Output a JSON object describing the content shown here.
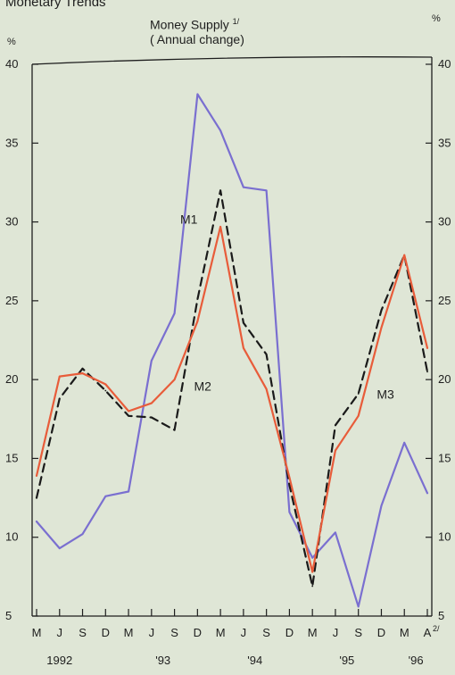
{
  "page": {
    "title": "Monetary Trends"
  },
  "chart_data": {
    "type": "line",
    "title": "Money Supply",
    "title_note": "1/",
    "subtitle": "( Annual change)",
    "y_unit_left": "%",
    "y_unit_right": "%",
    "ylim": [
      5,
      40
    ],
    "yticks": [
      5,
      10,
      15,
      20,
      25,
      30,
      35,
      40
    ],
    "grid": false,
    "legend": "inline labels",
    "x": [
      "May 1992",
      "Jun 1992",
      "Sep 1992",
      "Dec 1992",
      "Mar 1993",
      "Jun 1993",
      "Sep 1993",
      "Dec 1993",
      "Mar 1994",
      "Jun 1994",
      "Sep 1994",
      "Dec 1994",
      "Mar 1995",
      "Jun 1995",
      "Sep 1995",
      "Dec 1995",
      "Mar 1996",
      "Apr 1996"
    ],
    "x_tick_labels": [
      "M",
      "J",
      "S",
      "D",
      "M",
      "J",
      "S",
      "D",
      "M",
      "J",
      "S",
      "D",
      "M",
      "J",
      "S",
      "D",
      "M",
      "A"
    ],
    "x_last_note": "2/",
    "year_labels": [
      {
        "label": "1992",
        "at": 1
      },
      {
        "label": "'93",
        "at": 5.5
      },
      {
        "label": "'94",
        "at": 9.5
      },
      {
        "label": "'95",
        "at": 13.5
      },
      {
        "label": "'96",
        "at": 16.5
      }
    ],
    "series": [
      {
        "name": "M1",
        "color": "#7a6fd0",
        "dash": "solid",
        "values": [
          11.0,
          9.3,
          10.2,
          12.6,
          12.9,
          21.2,
          24.2,
          38.1,
          35.8,
          32.2,
          32.0,
          11.6,
          8.7,
          10.3,
          5.6,
          12.0,
          16.0,
          12.8
        ]
      },
      {
        "name": "M2",
        "color": "#1a1a1a",
        "dash": "dashed",
        "values": [
          12.5,
          18.8,
          20.7,
          19.3,
          17.7,
          17.6,
          16.8,
          25.1,
          32.0,
          23.6,
          21.6,
          13.3,
          6.9,
          17.1,
          19.1,
          24.4,
          27.9,
          20.5
        ]
      },
      {
        "name": "M3",
        "color": "#e85c3a",
        "dash": "solid",
        "values": [
          13.9,
          20.2,
          20.4,
          19.7,
          18.0,
          18.5,
          20.0,
          23.7,
          29.7,
          22.0,
          19.4,
          13.8,
          7.8,
          15.5,
          17.7,
          23.3,
          27.9,
          22.0
        ]
      }
    ],
    "labels": [
      {
        "series": "M1",
        "text": "M1",
        "at_x": 6.25,
        "at_y": 29.9
      },
      {
        "series": "M2",
        "text": "M2",
        "at_x": 6.85,
        "at_y": 19.3
      },
      {
        "series": "M3",
        "text": "M3",
        "at_x": 14.8,
        "at_y": 18.8
      }
    ]
  }
}
